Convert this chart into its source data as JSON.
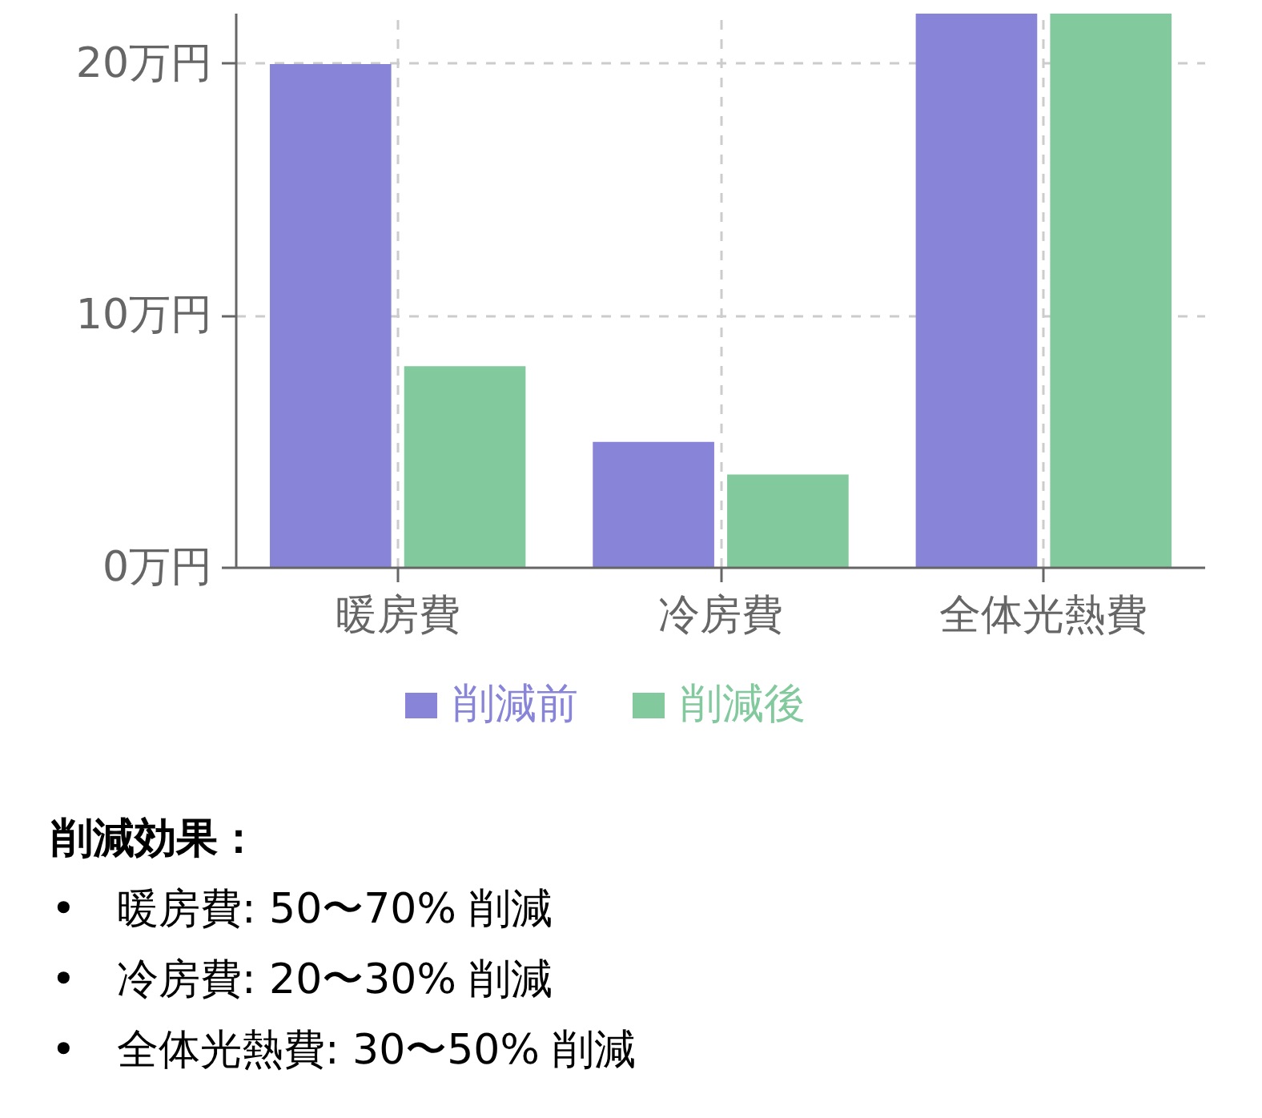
{
  "chart_data": {
    "type": "bar",
    "categories": [
      "暖房費",
      "冷房費",
      "全体光熱費"
    ],
    "series": [
      {
        "name": "削減前",
        "color": "#8884d8",
        "values": [
          20,
          5,
          22
        ]
      },
      {
        "name": "削減後",
        "color": "#82ca9d",
        "values": [
          8,
          3.7,
          22
        ]
      }
    ],
    "ylim": [
      0,
      22
    ],
    "yticks": [
      {
        "value": 0,
        "label": "0万円"
      },
      {
        "value": 10,
        "label": "10万円"
      },
      {
        "value": 20,
        "label": "20万円"
      }
    ],
    "grid": true,
    "legend": "bottom",
    "annotations": [
      "削減効果：",
      "• 暖房費: 50〜70% 削減",
      "• 冷房費: 20〜30% 削減",
      "• 全体光熱費: 30〜50% 削減"
    ]
  }
}
